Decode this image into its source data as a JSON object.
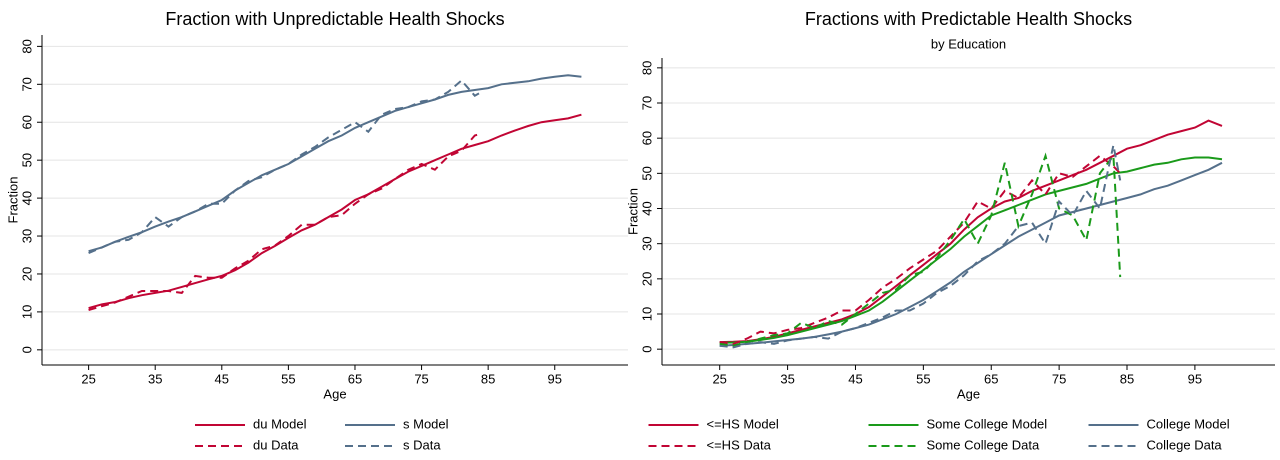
{
  "chart_data": [
    {
      "type": "line",
      "title": "Fraction with Unpredictable Health Shocks",
      "xlabel": "Age",
      "ylabel": "Fraction",
      "xlim": [
        18,
        106
      ],
      "ylim": [
        -4,
        83
      ],
      "xticks": [
        25,
        35,
        45,
        55,
        65,
        75,
        85,
        95
      ],
      "yticks": [
        0,
        10,
        20,
        30,
        40,
        50,
        60,
        70,
        80
      ],
      "grid": true,
      "series": [
        {
          "name": "du Model",
          "color": "#c10534",
          "dash": false,
          "x": [
            25,
            27,
            29,
            31,
            33,
            35,
            37,
            39,
            41,
            43,
            45,
            47,
            49,
            51,
            53,
            55,
            57,
            59,
            61,
            63,
            65,
            67,
            69,
            71,
            73,
            75,
            77,
            79,
            81,
            83,
            85,
            87,
            89,
            91,
            93,
            95,
            97,
            99
          ],
          "values": [
            11,
            12,
            12.6,
            13.6,
            14.4,
            15,
            15.6,
            16.6,
            17.6,
            18.6,
            19.5,
            21,
            23,
            25.5,
            27.4,
            29.5,
            31.5,
            33,
            35,
            37,
            39.5,
            41,
            43,
            45,
            47,
            48.5,
            50,
            51.5,
            53,
            54,
            55,
            56.5,
            57.8,
            59,
            60,
            60.5,
            61,
            62
          ]
        },
        {
          "name": "s Model",
          "color": "#55708b",
          "dash": false,
          "x": [
            25,
            27,
            29,
            31,
            33,
            35,
            37,
            39,
            41,
            43,
            45,
            47,
            49,
            51,
            53,
            55,
            57,
            59,
            61,
            63,
            65,
            67,
            69,
            71,
            73,
            75,
            77,
            79,
            81,
            83,
            85,
            87,
            89,
            91,
            93,
            95,
            97,
            99
          ],
          "values": [
            26,
            27,
            28.5,
            29.8,
            31,
            32.5,
            33.8,
            35,
            36.5,
            38,
            39.5,
            42,
            44,
            46,
            47.5,
            49,
            51,
            53,
            55,
            56.5,
            58.5,
            60,
            61.5,
            63,
            64,
            65,
            66,
            67.2,
            68,
            68.5,
            69,
            70,
            70.4,
            70.8,
            71.5,
            72,
            72.4,
            72
          ]
        },
        {
          "name": "du Data",
          "color": "#c10534",
          "dash": true,
          "x": [
            25,
            27,
            29,
            31,
            33,
            35,
            37,
            39,
            41,
            43,
            45,
            47,
            49,
            51,
            53,
            55,
            57,
            59,
            61,
            63,
            65,
            67,
            69,
            71,
            73,
            75,
            77,
            79,
            81,
            83,
            84
          ],
          "values": [
            10.5,
            11.5,
            12.5,
            14,
            15.5,
            15.5,
            15.5,
            15,
            19.5,
            19,
            19,
            21.5,
            23.5,
            26.5,
            27.5,
            30,
            33,
            33,
            35,
            35.5,
            38.5,
            41,
            42.5,
            45,
            47.5,
            49,
            47.5,
            51,
            52.5,
            56.5,
            57
          ]
        },
        {
          "name": "s Data",
          "color": "#55708b",
          "dash": true,
          "x": [
            25,
            27,
            29,
            31,
            33,
            35,
            37,
            39,
            41,
            43,
            45,
            47,
            49,
            51,
            53,
            55,
            57,
            59,
            61,
            63,
            65,
            67,
            69,
            71,
            73,
            75,
            77,
            79,
            81,
            83,
            84
          ],
          "values": [
            25.5,
            27,
            28.5,
            29,
            31,
            35,
            32.5,
            35,
            36.5,
            38.5,
            38.5,
            42,
            44.5,
            45.5,
            47.5,
            49,
            51.5,
            53.5,
            56,
            58,
            60,
            57.5,
            62,
            63.5,
            64,
            65.5,
            66,
            68,
            71,
            67,
            68
          ]
        }
      ]
    },
    {
      "type": "line",
      "title": "Fractions with Predictable Health Shocks",
      "subtitle": "by Education",
      "xlabel": "Age",
      "ylabel": "Fraction",
      "xlim": [
        16.5,
        106.8
      ],
      "ylim": [
        -4.5,
        82.8
      ],
      "xticks": [
        25,
        35,
        45,
        55,
        65,
        75,
        85,
        95
      ],
      "yticks": [
        0,
        10,
        20,
        30,
        40,
        50,
        60,
        70,
        80
      ],
      "grid": true,
      "series": [
        {
          "name": "<=HS Model",
          "color": "#c10534",
          "dash": false,
          "x": [
            25,
            27,
            29,
            31,
            33,
            35,
            37,
            39,
            41,
            43,
            45,
            47,
            49,
            51,
            53,
            55,
            57,
            59,
            61,
            63,
            65,
            67,
            69,
            71,
            73,
            75,
            77,
            79,
            81,
            83,
            85,
            87,
            89,
            91,
            93,
            95,
            97,
            99
          ],
          "values": [
            2,
            2.1,
            2.3,
            2.8,
            3.5,
            4.5,
            5.5,
            6.5,
            7.5,
            8.5,
            10,
            12,
            15,
            18,
            21,
            24,
            27,
            30,
            34,
            37.5,
            40,
            42,
            43,
            45,
            46.5,
            48,
            49.5,
            51,
            53,
            55,
            57,
            58,
            59.5,
            61,
            62,
            63,
            65,
            63.5
          ]
        },
        {
          "name": "Some College Model",
          "color": "#1a9a1a",
          "dash": false,
          "x": [
            25,
            27,
            29,
            31,
            33,
            35,
            37,
            39,
            41,
            43,
            45,
            47,
            49,
            51,
            53,
            55,
            57,
            59,
            61,
            63,
            65,
            67,
            69,
            71,
            73,
            75,
            77,
            79,
            81,
            83,
            85,
            87,
            89,
            91,
            93,
            95,
            97,
            99
          ],
          "values": [
            1.8,
            1.9,
            2.1,
            2.6,
            3.2,
            4,
            5,
            6,
            7,
            8,
            9.5,
            11,
            13.5,
            16.5,
            19.5,
            22.5,
            25.5,
            28.5,
            32,
            35,
            38,
            39.5,
            41,
            42.5,
            44,
            45,
            46,
            47,
            48.5,
            50,
            50.5,
            51.5,
            52.5,
            53,
            54,
            54.5,
            54.5,
            54
          ]
        },
        {
          "name": "College Model",
          "color": "#55708b",
          "dash": false,
          "x": [
            25,
            27,
            29,
            31,
            33,
            35,
            37,
            39,
            41,
            43,
            45,
            47,
            49,
            51,
            53,
            55,
            57,
            59,
            61,
            63,
            65,
            67,
            69,
            71,
            73,
            75,
            77,
            79,
            81,
            83,
            85,
            87,
            89,
            91,
            93,
            95,
            97,
            99
          ],
          "values": [
            1,
            1.2,
            1.5,
            1.8,
            2.2,
            2.6,
            3,
            3.5,
            4.2,
            5,
            6,
            7,
            8.5,
            10,
            12,
            14,
            16.5,
            19,
            22,
            24.5,
            27,
            29.5,
            32,
            34,
            36,
            38,
            39,
            40,
            41,
            42,
            43,
            44,
            45.5,
            46.5,
            48,
            49.5,
            51,
            53
          ]
        },
        {
          "name": "<=HS Data",
          "color": "#c10534",
          "dash": true,
          "x": [
            25,
            27,
            29,
            31,
            33,
            35,
            37,
            39,
            41,
            43,
            45,
            47,
            49,
            51,
            53,
            55,
            57,
            59,
            61,
            63,
            65,
            67,
            69,
            71,
            73,
            75,
            77,
            79,
            81,
            83,
            84
          ],
          "values": [
            2,
            1.5,
            3,
            5,
            4.5,
            5.5,
            6,
            7.5,
            9,
            11,
            11,
            14,
            17.5,
            20,
            23,
            25.5,
            28,
            32,
            36,
            42,
            40,
            45,
            43,
            48,
            44,
            50,
            49,
            52,
            55,
            52,
            50
          ]
        },
        {
          "name": "Some College Data",
          "color": "#1a9a1a",
          "dash": true,
          "x": [
            25,
            27,
            29,
            31,
            33,
            35,
            37,
            39,
            41,
            43,
            45,
            47,
            49,
            51,
            53,
            55,
            57,
            59,
            61,
            63,
            65,
            67,
            69,
            71,
            73,
            75,
            77,
            79,
            81,
            83,
            84
          ],
          "values": [
            1.5,
            1,
            2,
            3,
            4,
            4.5,
            7.5,
            6,
            8,
            7,
            10,
            13,
            16,
            17,
            21,
            22,
            26,
            31,
            37,
            30,
            38,
            53,
            35,
            44,
            55,
            40,
            38,
            31,
            50,
            55,
            20.5
          ]
        },
        {
          "name": "College Data",
          "color": "#55708b",
          "dash": true,
          "x": [
            25,
            27,
            29,
            31,
            33,
            35,
            37,
            39,
            41,
            43,
            45,
            47,
            49,
            51,
            53,
            55,
            57,
            59,
            61,
            63,
            65,
            67,
            69,
            71,
            73,
            75,
            77,
            79,
            81,
            83,
            84
          ],
          "values": [
            1,
            0.5,
            1.5,
            2,
            1.5,
            2.5,
            3,
            3.5,
            3,
            5,
            6,
            7.5,
            9,
            11,
            11,
            13,
            16,
            18,
            21,
            25,
            27,
            30,
            35,
            36,
            30,
            42,
            38,
            45,
            40,
            58,
            48
          ]
        }
      ]
    }
  ]
}
